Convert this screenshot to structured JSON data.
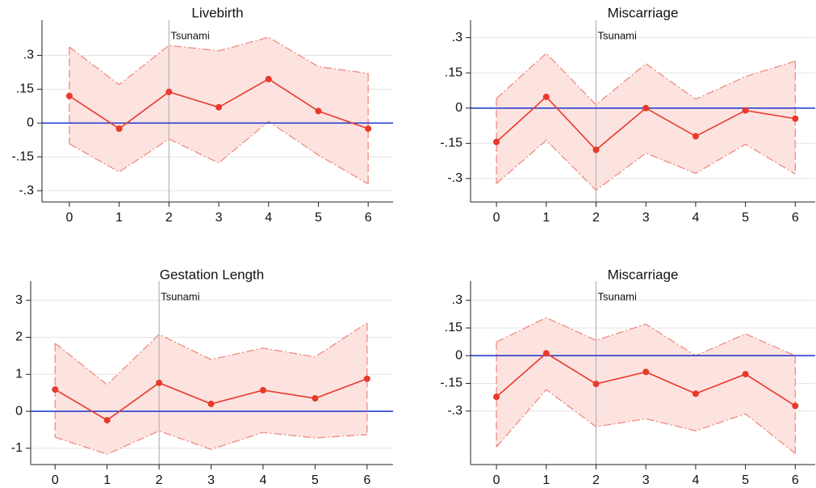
{
  "chart_data": [
    {
      "type": "line",
      "title": "Livebirth",
      "color": "#e8392b",
      "band_color": "#fde3e0",
      "band_edge": "#ef8c80",
      "x": [
        0,
        1,
        2,
        3,
        4,
        5,
        6
      ],
      "values": [
        0.12,
        -0.025,
        0.138,
        0.07,
        0.195,
        0.053,
        -0.025
      ],
      "ci_upper": [
        0.337,
        0.17,
        0.344,
        0.32,
        0.38,
        0.25,
        0.22
      ],
      "ci_lower": [
        -0.092,
        -0.217,
        -0.071,
        -0.177,
        0.007,
        -0.142,
        -0.27
      ],
      "xlim": [
        -0.55,
        6.5
      ],
      "xticks": [
        0,
        1,
        2,
        3,
        4,
        5,
        6
      ],
      "ylim": [
        -0.35,
        0.42
      ],
      "yticks": [
        {
          "value": 0.3,
          "label": ".3"
        },
        {
          "value": 0.15,
          "label": ".15"
        },
        0,
        {
          "value": -0.15,
          "label": "-.15"
        },
        {
          "value": -0.3,
          "label": "-.3"
        }
      ],
      "grid": true,
      "annotation": {
        "text": "Tsunami",
        "x": 2
      },
      "reference_line": {
        "y": 0,
        "color": "#2a3fd0"
      }
    },
    {
      "type": "line",
      "title": "Miscarriage",
      "color": "#e8392b",
      "band_color": "#fde3e0",
      "band_edge": "#ef8c80",
      "x": [
        0,
        1,
        2,
        3,
        4,
        5,
        6
      ],
      "values": [
        -0.144,
        0.048,
        -0.178,
        0,
        -0.12,
        -0.01,
        -0.045
      ],
      "ci_upper": [
        0.041,
        0.233,
        0.014,
        0.189,
        0.038,
        0.134,
        0.2
      ],
      "ci_lower": [
        -0.322,
        -0.137,
        -0.35,
        -0.192,
        -0.278,
        -0.154,
        -0.281
      ],
      "xlim": [
        -0.52,
        6.4
      ],
      "xticks": [
        0,
        1,
        2,
        3,
        4,
        5,
        6
      ],
      "ylim": [
        -0.4,
        0.34
      ],
      "yticks": [
        {
          "value": 0.3,
          "label": ".3"
        },
        {
          "value": 0.15,
          "label": ".15"
        },
        0,
        {
          "value": -0.15,
          "label": "-.15"
        },
        {
          "value": -0.3,
          "label": "-.3"
        }
      ],
      "grid": true,
      "annotation": {
        "text": "Tsunami",
        "x": 2
      },
      "reference_line": {
        "y": 0,
        "color": "#2a3fd0"
      }
    },
    {
      "type": "line",
      "title": "Gestation Length",
      "color": "#e8392b",
      "band_color": "#fde3e0",
      "band_edge": "#ef8c80",
      "x": [
        0,
        1,
        2,
        3,
        4,
        5,
        6
      ],
      "values": [
        0.59,
        -0.24,
        0.77,
        0.2,
        0.57,
        0.35,
        0.88
      ],
      "ci_upper": [
        1.84,
        0.72,
        2.08,
        1.4,
        1.71,
        1.47,
        2.39
      ],
      "ci_lower": [
        -0.7,
        -1.16,
        -0.53,
        -1.03,
        -0.57,
        -0.72,
        -0.63
      ],
      "xlim": [
        -0.47,
        6.5
      ],
      "xticks": [
        0,
        1,
        2,
        3,
        4,
        5,
        6
      ],
      "ylim": [
        -1.44,
        3.3
      ],
      "yticks": [
        3,
        2,
        1,
        0,
        -1
      ],
      "grid": true,
      "annotation": {
        "text": "Tsunami",
        "x": 2
      },
      "reference_line": {
        "y": 0,
        "color": "#2a3fd0"
      }
    },
    {
      "type": "line",
      "title": "Miscarriage",
      "color": "#e8392b",
      "band_color": "#fde3e0",
      "band_edge": "#ef8c80",
      "x": [
        0,
        1,
        2,
        3,
        4,
        5,
        6
      ],
      "values": [
        -0.223,
        0.013,
        -0.153,
        -0.088,
        -0.206,
        -0.1,
        -0.272
      ],
      "ci_upper": [
        0.074,
        0.206,
        0.083,
        0.171,
        0,
        0.118,
        0
      ],
      "ci_lower": [
        -0.495,
        -0.184,
        -0.385,
        -0.342,
        -0.407,
        -0.315,
        -0.53
      ],
      "xlim": [
        -0.52,
        6.4
      ],
      "xticks": [
        0,
        1,
        2,
        3,
        4,
        5,
        6
      ],
      "ylim": [
        -0.59,
        0.36
      ],
      "yticks": [
        {
          "value": 0.3,
          "label": ".3"
        },
        {
          "value": 0.15,
          "label": ".15"
        },
        0,
        {
          "value": -0.15,
          "label": "-.15"
        },
        {
          "value": -0.3,
          "label": "-.3"
        }
      ],
      "grid": true,
      "annotation": {
        "text": "Tsunami",
        "x": 2
      },
      "reference_line": {
        "y": 0,
        "color": "#2a3fd0"
      }
    }
  ]
}
